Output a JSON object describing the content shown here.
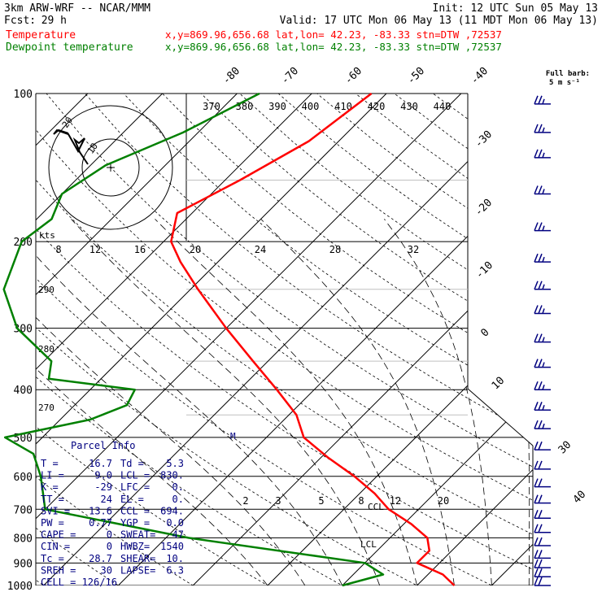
{
  "header": {
    "model": "3km ARW-WRF -- NCAR/MMM",
    "init": "Init: 12 UTC Sun 05 May 13",
    "fcst_label": "Fcst:",
    "fcst_value": "29 h",
    "valid": "Valid: 17 UTC Mon 06 May 13 (11 MDT Mon 06 May 13)",
    "temp_label": "Temperature",
    "dew_label": "Dewpoint temperature",
    "location": "x,y=869.96,656.68   lat,lon= 42.23, -83.33  stn=DTW ,72537",
    "barb_label_1": "Full barb:",
    "barb_label_2": "5 m s⁻¹"
  },
  "colors": {
    "temperature": "#ff0000",
    "dewpoint": "#008000",
    "wind_barbs": "#000080",
    "text": "#000000"
  },
  "chart_data": {
    "type": "line",
    "subtype": "skew-T log-p sounding",
    "y_axis": "pressure (hPa), log scale",
    "pressure_ticks": [
      100,
      200,
      300,
      400,
      500,
      600,
      700,
      800,
      900,
      1000
    ],
    "temperature_tick_labels": [
      "-80",
      "-70",
      "-60",
      "-50",
      "-40",
      "-30",
      "-20",
      "-10",
      "0",
      "10",
      "30",
      "40"
    ],
    "theta_e_labels": [
      "370",
      "380",
      "390",
      "400",
      "410",
      "420",
      "430",
      "440"
    ],
    "mixing_ratio_labels": [
      "2",
      "3",
      "5",
      "8",
      "12",
      "20"
    ],
    "hodograph_speed_labels": [
      "8",
      "12",
      "16",
      "20",
      "24",
      "28",
      "32"
    ],
    "hodograph_unit": "kts",
    "hodograph_ring_labels": [
      "10",
      "20"
    ],
    "side_labels": [
      "290",
      "280",
      "270"
    ],
    "annotations": [
      "CCL",
      "LCL",
      "M"
    ],
    "series": [
      {
        "name": "Temperature",
        "color": "#ff0000",
        "points": [
          [
            100,
            -52
          ],
          [
            125,
            -54
          ],
          [
            150,
            -58
          ],
          [
            175,
            -62
          ],
          [
            200,
            -59
          ],
          [
            220,
            -55
          ],
          [
            250,
            -49
          ],
          [
            300,
            -40
          ],
          [
            350,
            -32
          ],
          [
            400,
            -25
          ],
          [
            450,
            -19
          ],
          [
            500,
            -15
          ],
          [
            550,
            -9
          ],
          [
            600,
            -3
          ],
          [
            650,
            2
          ],
          [
            700,
            6
          ],
          [
            750,
            11
          ],
          [
            800,
            15
          ],
          [
            850,
            17
          ],
          [
            900,
            17
          ],
          [
            950,
            22
          ],
          [
            1000,
            25
          ]
        ]
      },
      {
        "name": "Dewpoint temperature",
        "color": "#008000",
        "points": [
          [
            100,
            -67
          ],
          [
            120,
            -72
          ],
          [
            140,
            -78
          ],
          [
            160,
            -80
          ],
          [
            180,
            -78
          ],
          [
            200,
            -79
          ],
          [
            250,
            -75
          ],
          [
            300,
            -68
          ],
          [
            350,
            -59
          ],
          [
            380,
            -57
          ],
          [
            400,
            -44
          ],
          [
            430,
            -43
          ],
          [
            460,
            -46
          ],
          [
            500,
            -55
          ],
          [
            540,
            -49
          ],
          [
            600,
            -45
          ],
          [
            700,
            -40
          ],
          [
            800,
            -17
          ],
          [
            900,
            10
          ],
          [
            950,
            14
          ],
          [
            1000,
            10
          ]
        ]
      }
    ],
    "wind_barbs_hpa": [
      105,
      120,
      135,
      160,
      190,
      220,
      250,
      280,
      320,
      360,
      400,
      440,
      480,
      530,
      580,
      630,
      680,
      730,
      780,
      830,
      880,
      920,
      960,
      1000
    ]
  },
  "parcel_info": {
    "title": "Parcel Info",
    "rows": [
      [
        "T  =",
        "16.7",
        "Td =",
        "5.3"
      ],
      [
        "LI =",
        "9.0",
        "LCL =",
        "830."
      ],
      [
        "K  =",
        "-29",
        "LFC =",
        "0."
      ],
      [
        "TT =",
        "24",
        "EL  =",
        "0."
      ],
      [
        "SVI =",
        "13.6",
        "CCL =",
        "694."
      ],
      [
        "PW =",
        "0.77",
        "YGP =",
        "0.0"
      ],
      [
        "CAPE =",
        "0",
        "SWEAT=",
        "47"
      ],
      [
        "CIN =",
        "0",
        "HWBZ=",
        "1540"
      ],
      [
        "Tc =",
        "28.7",
        "SHEAR=",
        "10."
      ],
      [
        "SREH =",
        "30",
        "LAPSE=",
        "6.3"
      ]
    ],
    "cell": "CELL = 126/16"
  }
}
